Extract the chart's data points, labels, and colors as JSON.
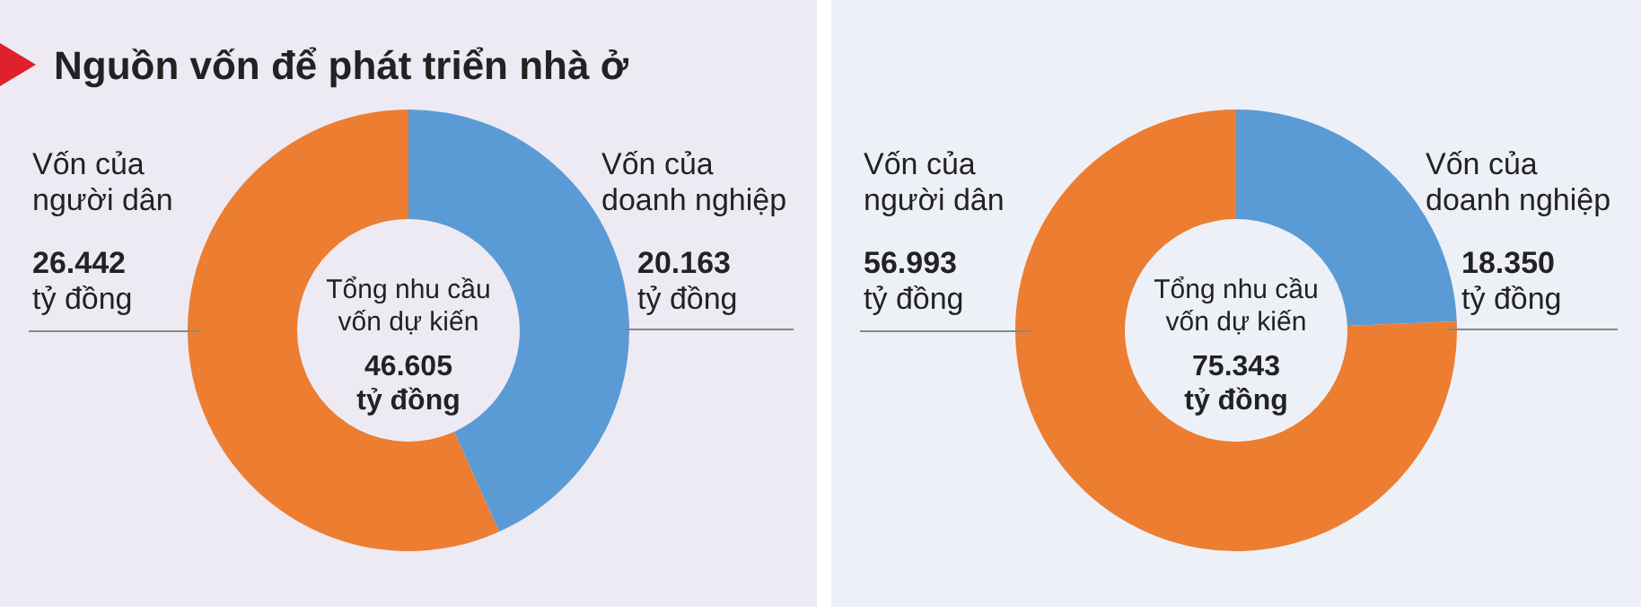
{
  "chart_data": [
    {
      "type": "donut",
      "title": "Nguồn vốn để phát triển nhà ở",
      "categories": [
        "Vốn của doanh nghiệp",
        "Vốn của người dân"
      ],
      "values": [
        20.163,
        26.442
      ],
      "colors": [
        "#5b9bd5",
        "#ed7d31"
      ],
      "value_labels": [
        "20.163 tỷ đồng",
        "26.442 tỷ đồng"
      ],
      "annotations": [
        "Tổng nhu cầu vốn dự kiến",
        "46.605 tỷ đồng"
      ]
    },
    {
      "type": "donut",
      "categories": [
        "Vốn của doanh nghiệp",
        "Vốn của người dân"
      ],
      "values": [
        18.35,
        56.993
      ],
      "colors": [
        "#5b9bd5",
        "#ed7d31"
      ],
      "value_labels": [
        "18.350 tỷ đồng",
        "56.993 tỷ đồng"
      ],
      "annotations": [
        "Tổng nhu cầu vốn dự kiến",
        "75.343 tỷ đồng"
      ]
    }
  ]
}
